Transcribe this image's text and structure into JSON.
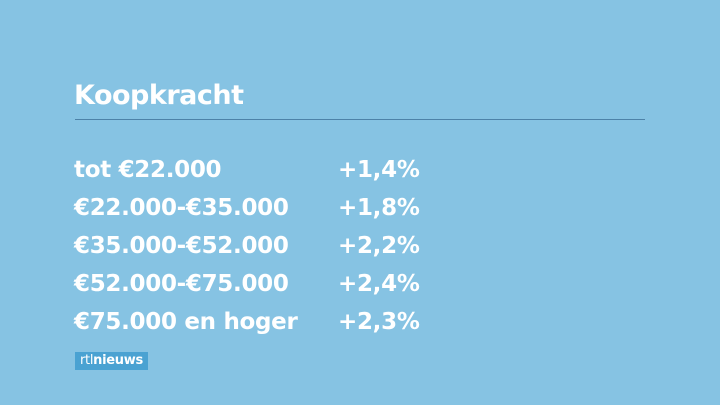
{
  "header": {
    "title": "Koopkracht"
  },
  "table": {
    "rows": [
      [
        "tot €22.000",
        "+1,4%"
      ],
      [
        "€22.000-€35.000",
        "+1,8%"
      ],
      [
        "€35.000-€52.000",
        "+2,2%"
      ],
      [
        "€52.000-€75.000",
        "+2,4%"
      ],
      [
        "€75.000 en hoger",
        "+2,3%"
      ]
    ]
  },
  "logo": [
    "rtl",
    "nieuws"
  ]
}
